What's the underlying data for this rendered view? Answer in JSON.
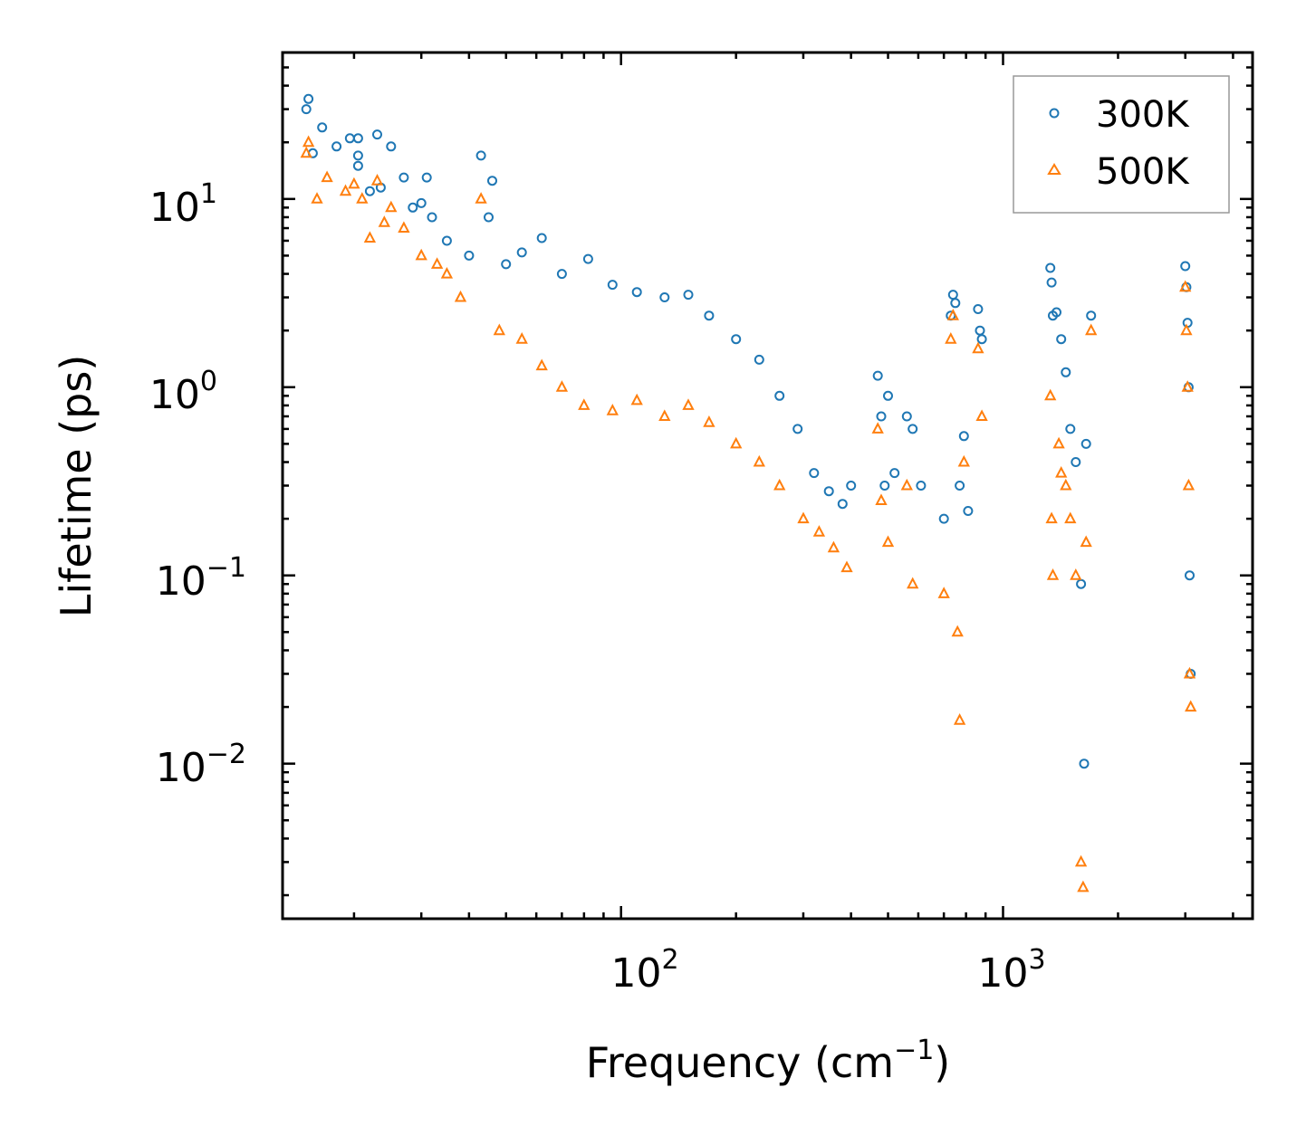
{
  "chart_data": {
    "type": "scatter",
    "title": "",
    "xlabel": "Frequency (cm",
    "xlabel_sup": "−1",
    "xlabel_suffix": ")",
    "ylabel": "Lifetime (ps)",
    "x_scale": "log",
    "y_scale": "log",
    "xlim": [
      13,
      4500
    ],
    "ylim": [
      0.0015,
      60
    ],
    "x_ticks": [
      {
        "value": 100,
        "base": "10",
        "exp": "2"
      },
      {
        "value": 1000,
        "base": "10",
        "exp": "3"
      }
    ],
    "y_ticks": [
      {
        "value": 10,
        "base": "10",
        "exp": "1"
      },
      {
        "value": 1,
        "base": "10",
        "exp": "0"
      },
      {
        "value": 0.1,
        "base": "10",
        "exp": "−1"
      },
      {
        "value": 0.01,
        "base": "10",
        "exp": "−2"
      }
    ],
    "grid": false,
    "legend_position": "top-right",
    "series": [
      {
        "name": "300K",
        "marker": "circle",
        "color": "#1f77b4",
        "points": [
          [
            15,
            30
          ],
          [
            15.2,
            34
          ],
          [
            15.6,
            17.5
          ],
          [
            16.5,
            24
          ],
          [
            18,
            19
          ],
          [
            19.5,
            21
          ],
          [
            20.5,
            21
          ],
          [
            20.5,
            15
          ],
          [
            20.5,
            17
          ],
          [
            22,
            11
          ],
          [
            23,
            22
          ],
          [
            23.5,
            11.5
          ],
          [
            25,
            19
          ],
          [
            27,
            13
          ],
          [
            28.5,
            9
          ],
          [
            30,
            9.5
          ],
          [
            31,
            13
          ],
          [
            32,
            8
          ],
          [
            35,
            6
          ],
          [
            40,
            5
          ],
          [
            43,
            17
          ],
          [
            45,
            8
          ],
          [
            46,
            12.5
          ],
          [
            50,
            4.5
          ],
          [
            55,
            5.2
          ],
          [
            62,
            6.2
          ],
          [
            70,
            4
          ],
          [
            82,
            4.8
          ],
          [
            95,
            3.5
          ],
          [
            110,
            3.2
          ],
          [
            130,
            3
          ],
          [
            150,
            3.1
          ],
          [
            170,
            2.4
          ],
          [
            200,
            1.8
          ],
          [
            230,
            1.4
          ],
          [
            260,
            0.9
          ],
          [
            290,
            0.6
          ],
          [
            320,
            0.35
          ],
          [
            350,
            0.28
          ],
          [
            380,
            0.24
          ],
          [
            400,
            0.3
          ],
          [
            470,
            1.15
          ],
          [
            480,
            0.7
          ],
          [
            490,
            0.3
          ],
          [
            500,
            0.9
          ],
          [
            520,
            0.35
          ],
          [
            560,
            0.7
          ],
          [
            580,
            0.6
          ],
          [
            610,
            0.3
          ],
          [
            700,
            0.2
          ],
          [
            730,
            2.4
          ],
          [
            740,
            3.1
          ],
          [
            750,
            2.8
          ],
          [
            770,
            0.3
          ],
          [
            790,
            0.55
          ],
          [
            810,
            0.22
          ],
          [
            860,
            2.6
          ],
          [
            870,
            2.0
          ],
          [
            880,
            1.8
          ],
          [
            1330,
            4.3
          ],
          [
            1340,
            3.6
          ],
          [
            1350,
            2.4
          ],
          [
            1380,
            2.5
          ],
          [
            1420,
            1.8
          ],
          [
            1460,
            1.2
          ],
          [
            1500,
            0.6
          ],
          [
            1550,
            0.4
          ],
          [
            1600,
            0.09
          ],
          [
            1630,
            0.01
          ],
          [
            1650,
            0.5
          ],
          [
            1700,
            2.4
          ],
          [
            3000,
            4.4
          ],
          [
            3020,
            3.4
          ],
          [
            3040,
            2.2
          ],
          [
            3060,
            1.0
          ],
          [
            3080,
            0.1
          ],
          [
            3100,
            0.03
          ]
        ]
      },
      {
        "name": "500K",
        "marker": "triangle",
        "color": "#ff7f0e",
        "points": [
          [
            15,
            17.5
          ],
          [
            15.2,
            20
          ],
          [
            16,
            10
          ],
          [
            17,
            13
          ],
          [
            19,
            11
          ],
          [
            20,
            12
          ],
          [
            21,
            10
          ],
          [
            22,
            6.2
          ],
          [
            23,
            12.5
          ],
          [
            24,
            7.5
          ],
          [
            25,
            9
          ],
          [
            27,
            7
          ],
          [
            30,
            5
          ],
          [
            33,
            4.5
          ],
          [
            35,
            4
          ],
          [
            38,
            3
          ],
          [
            43,
            10
          ],
          [
            48,
            2
          ],
          [
            55,
            1.8
          ],
          [
            62,
            1.3
          ],
          [
            70,
            1
          ],
          [
            80,
            0.8
          ],
          [
            95,
            0.75
          ],
          [
            110,
            0.85
          ],
          [
            130,
            0.7
          ],
          [
            150,
            0.8
          ],
          [
            170,
            0.65
          ],
          [
            200,
            0.5
          ],
          [
            230,
            0.4
          ],
          [
            260,
            0.3
          ],
          [
            300,
            0.2
          ],
          [
            330,
            0.17
          ],
          [
            360,
            0.14
          ],
          [
            390,
            0.11
          ],
          [
            470,
            0.6
          ],
          [
            480,
            0.25
          ],
          [
            500,
            0.15
          ],
          [
            560,
            0.3
          ],
          [
            580,
            0.09
          ],
          [
            700,
            0.08
          ],
          [
            730,
            1.8
          ],
          [
            740,
            2.4
          ],
          [
            760,
            0.05
          ],
          [
            770,
            0.017
          ],
          [
            790,
            0.4
          ],
          [
            860,
            1.6
          ],
          [
            880,
            0.7
          ],
          [
            1330,
            0.9
          ],
          [
            1340,
            0.2
          ],
          [
            1350,
            0.1
          ],
          [
            1400,
            0.5
          ],
          [
            1420,
            0.35
          ],
          [
            1460,
            0.3
          ],
          [
            1500,
            0.2
          ],
          [
            1550,
            0.1
          ],
          [
            1600,
            0.003
          ],
          [
            1620,
            0.0022
          ],
          [
            1650,
            0.15
          ],
          [
            1700,
            2.0
          ],
          [
            3000,
            3.4
          ],
          [
            3020,
            2.0
          ],
          [
            3040,
            1.0
          ],
          [
            3060,
            0.3
          ],
          [
            3080,
            0.03
          ],
          [
            3100,
            0.02
          ]
        ]
      }
    ]
  }
}
